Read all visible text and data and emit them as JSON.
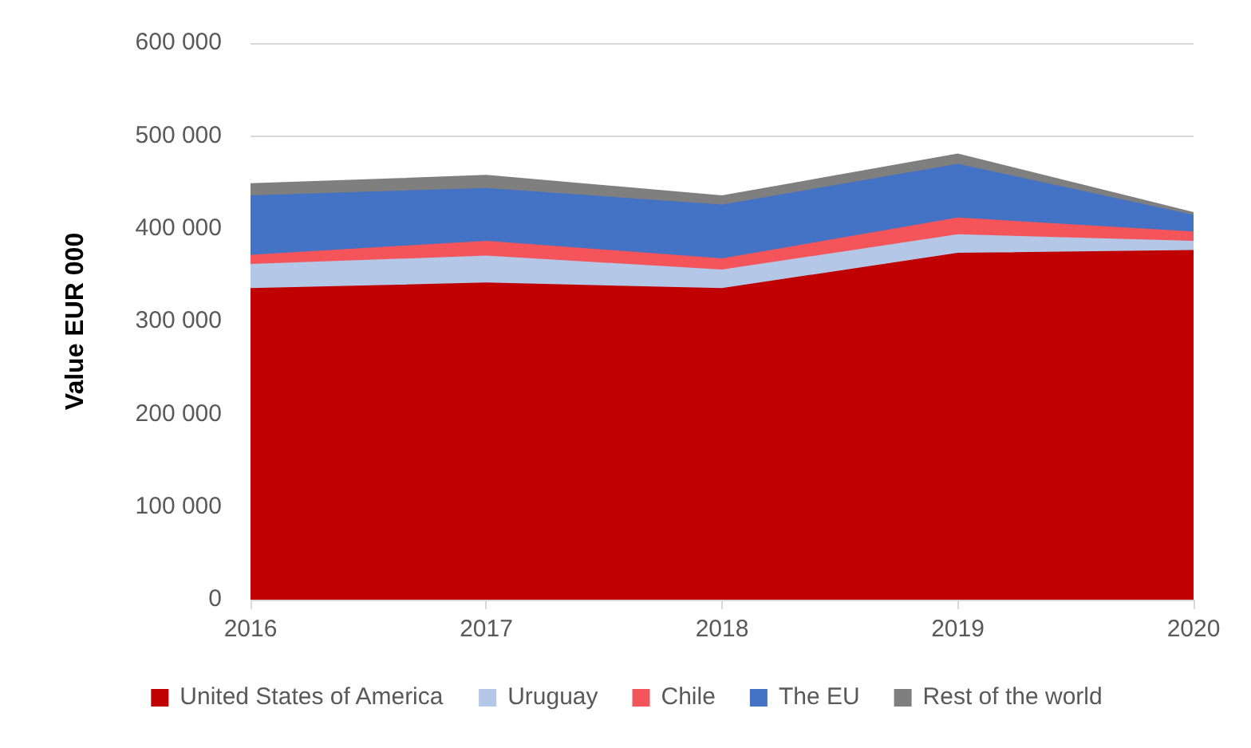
{
  "chart_data": {
    "type": "area",
    "stacked": true,
    "ylabel": "Value EUR 000",
    "categories": [
      "2016",
      "2017",
      "2018",
      "2019",
      "2020"
    ],
    "series": [
      {
        "name": "United States of America",
        "color": "#c00000",
        "values": [
          335000,
          341000,
          335000,
          373000,
          376000
        ]
      },
      {
        "name": "Uruguay",
        "color": "#b4c7e7",
        "values": [
          26000,
          29000,
          20000,
          20000,
          10000
        ]
      },
      {
        "name": "Chile",
        "color": "#f4555a",
        "values": [
          10000,
          16000,
          12000,
          18000,
          10000
        ]
      },
      {
        "name": "The EU",
        "color": "#4472c4",
        "values": [
          64000,
          57000,
          58000,
          58000,
          18000
        ]
      },
      {
        "name": "Rest of the world",
        "color": "#7f7f7f",
        "values": [
          13000,
          14000,
          10000,
          11000,
          3000
        ]
      }
    ],
    "ylim": [
      0,
      600000
    ],
    "yticks": [
      0,
      {
        "value": 100000,
        "label": "100 000"
      },
      {
        "value": 200000,
        "label": "200 000"
      },
      {
        "value": 300000,
        "label": "300 000"
      },
      {
        "value": 400000,
        "label": "400 000"
      },
      {
        "value": 500000,
        "label": "500 000"
      },
      {
        "value": 600000,
        "label": "600 000"
      }
    ],
    "grid": "y",
    "legend": "bottom"
  }
}
